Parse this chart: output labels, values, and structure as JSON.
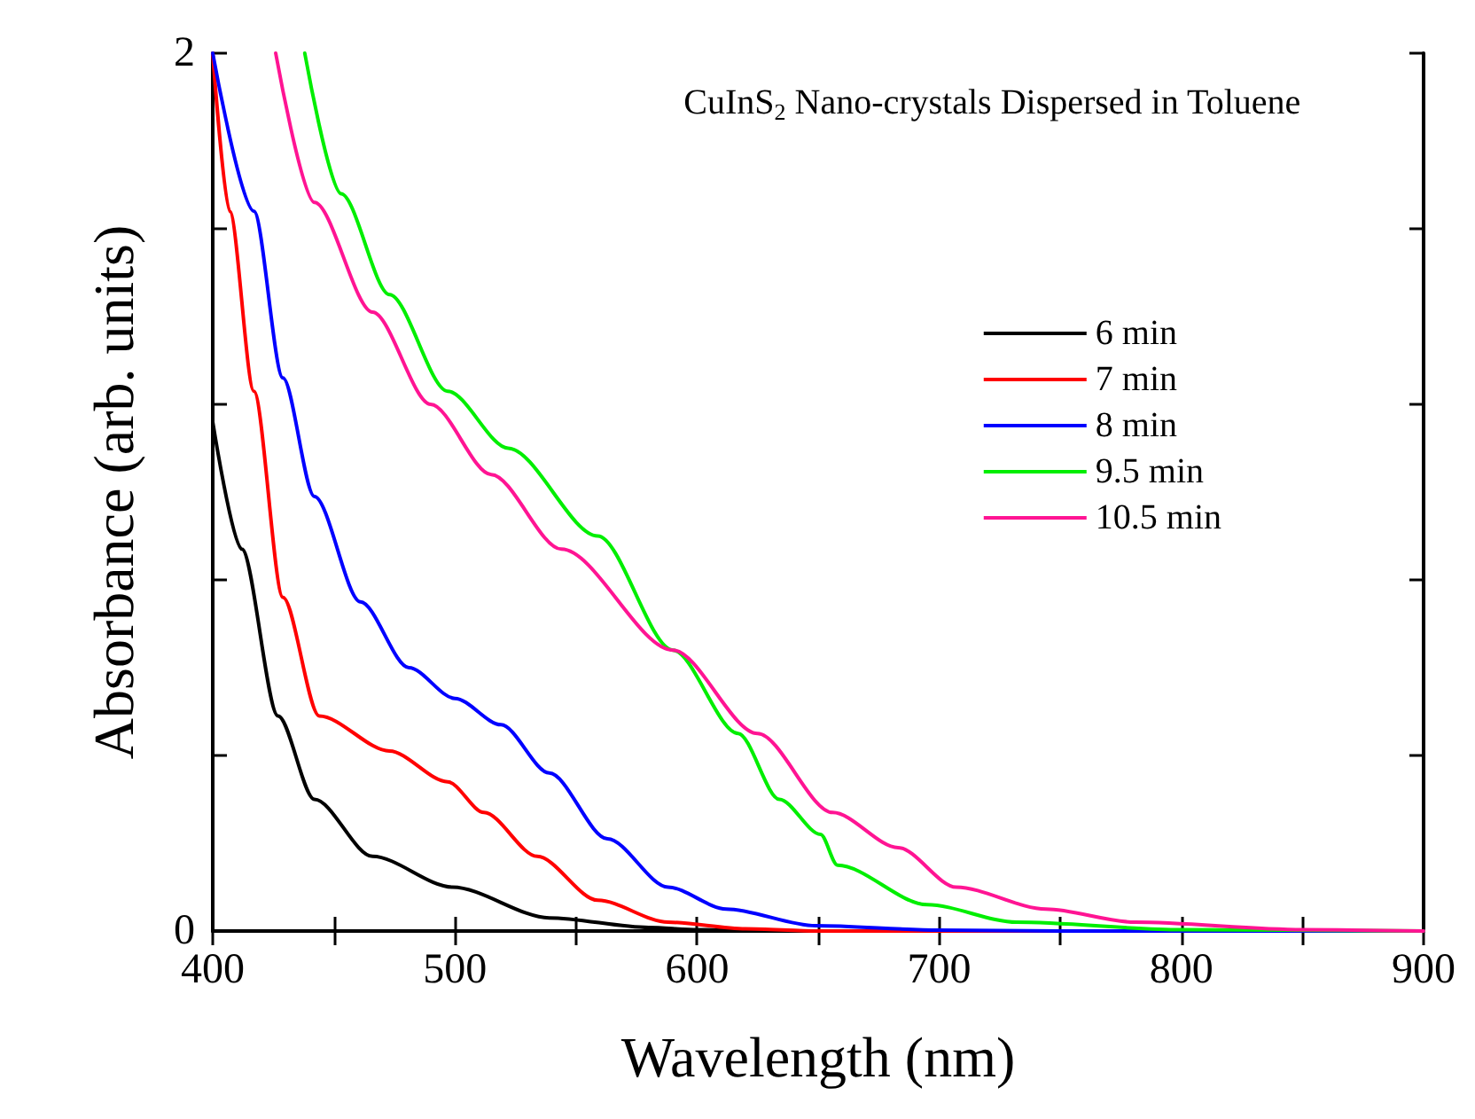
{
  "chart_data": {
    "type": "line",
    "xlabel": "Wavelength (nm)",
    "ylabel": "Absorbance (arb. units)",
    "annotations": [
      "CuInS$_{2}$ Nano-crystals Dispersed in Toluene"
    ],
    "xlim": [
      400,
      900
    ],
    "ylim": [
      0,
      2
    ],
    "xticks": [
      400,
      {
        "value": 450,
        "label": null
      },
      500,
      {
        "value": 550,
        "label": null
      },
      600,
      {
        "value": 650,
        "label": null
      },
      700,
      {
        "value": 750,
        "label": null
      },
      800,
      {
        "value": 850,
        "label": null
      },
      900
    ],
    "yticks": [
      0,
      {
        "value": 0.4,
        "label": null
      },
      {
        "value": 0.8,
        "label": null
      },
      {
        "value": 1.2,
        "label": null
      },
      {
        "value": 1.6,
        "label": null
      },
      2
    ],
    "grid": false,
    "legend": "top right",
    "marker": "none",
    "line_style": "solid",
    "series": [
      {
        "name": "6 min",
        "color": "#000000",
        "x": [
          400,
          412,
          427,
          442,
          466,
          499,
          539,
          580,
          600,
          650,
          700,
          900
        ],
        "values": [
          1.16,
          0.87,
          0.49,
          0.3,
          0.17,
          0.1,
          0.03,
          0.008,
          0.003,
          0,
          0,
          0
        ]
      },
      {
        "name": "7 min",
        "color": "#ff0000",
        "x": [
          400,
          407,
          417,
          429,
          444,
          473,
          497,
          512,
          534,
          559,
          588,
          620,
          650,
          700,
          900
        ],
        "values": [
          2,
          1.64,
          1.23,
          0.76,
          0.49,
          0.41,
          0.34,
          0.27,
          0.17,
          0.07,
          0.02,
          0.005,
          0,
          0,
          0
        ]
      },
      {
        "name": "8 min",
        "color": "#0000ff",
        "x": [
          400,
          417,
          429,
          442,
          461,
          481,
          500,
          519,
          539,
          563,
          588,
          612,
          649,
          700,
          750,
          900
        ],
        "values": [
          2,
          1.64,
          1.26,
          0.99,
          0.75,
          0.6,
          0.53,
          0.47,
          0.36,
          0.21,
          0.1,
          0.05,
          0.012,
          0.002,
          0,
          0
        ]
      },
      {
        "name": "9.5 min",
        "color": "#00ee00",
        "x": [
          438,
          453,
          473,
          497,
          522,
          559,
          590,
          617,
          634,
          651,
          658,
          695,
          732,
          800,
          900
        ],
        "values": [
          2,
          1.68,
          1.45,
          1.23,
          1.1,
          0.9,
          0.64,
          0.45,
          0.3,
          0.22,
          0.15,
          0.06,
          0.02,
          0.003,
          0
        ]
      },
      {
        "name": "10.5 min",
        "color": "#ff1493",
        "x": [
          426,
          442,
          466,
          490,
          515,
          544,
          590,
          625,
          656,
          683,
          707,
          744,
          781,
          850,
          900
        ],
        "values": [
          2,
          1.66,
          1.41,
          1.2,
          1.04,
          0.87,
          0.64,
          0.45,
          0.27,
          0.19,
          0.1,
          0.05,
          0.02,
          0.003,
          0
        ]
      }
    ]
  }
}
